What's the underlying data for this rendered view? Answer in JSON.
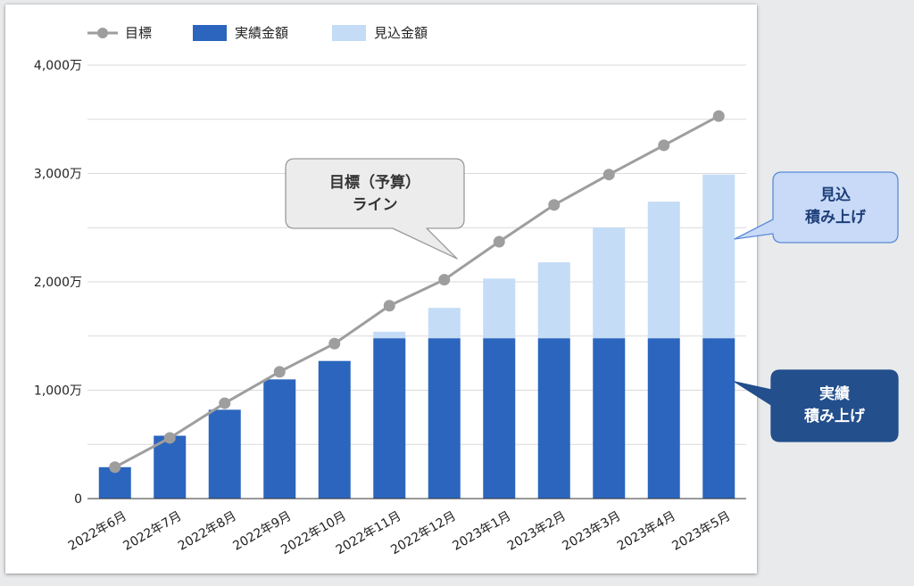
{
  "chart_data": {
    "type": "bar",
    "categories": [
      "2022年6月",
      "2022年7月",
      "2022年8月",
      "2022年9月",
      "2022年10月",
      "2022年11月",
      "2022年12月",
      "2023年1月",
      "2023年2月",
      "2023年3月",
      "2023年4月",
      "2023年5月"
    ],
    "series": [
      {
        "name": "目標",
        "type": "line",
        "values": [
          290,
          560,
          880,
          1170,
          1430,
          1780,
          2020,
          2370,
          2710,
          2990,
          3260,
          3530
        ]
      },
      {
        "name": "実績金額",
        "type": "bar",
        "stack": "total",
        "values": [
          290,
          580,
          820,
          1100,
          1270,
          1480,
          1480,
          1480,
          1480,
          1480,
          1480,
          1480
        ]
      },
      {
        "name": "見込金額",
        "type": "bar",
        "stack": "total",
        "values": [
          0,
          0,
          0,
          0,
          0,
          60,
          280,
          550,
          700,
          1020,
          1260,
          1510
        ]
      }
    ],
    "ylim": [
      0,
      4000
    ],
    "yticks": [
      {
        "value": 0,
        "label": "0"
      },
      {
        "value": 1000,
        "label": "1,000万"
      },
      {
        "value": 2000,
        "label": "2,000万"
      },
      {
        "value": 3000,
        "label": "3,000万"
      },
      {
        "value": 4000,
        "label": "4,000万"
      }
    ],
    "grid": true,
    "legend_position": "top-left",
    "colors": {
      "target_line": "#9e9e9e",
      "actual": "#2b65bd",
      "forecast": "#c4dcf6",
      "gridline": "#dadada"
    },
    "annotations": [
      {
        "id": "target",
        "lines": [
          "目標（予算）",
          "ライン"
        ],
        "fill": "#ececec",
        "stroke": "#9a9a9a",
        "text_color": "#333333"
      },
      {
        "id": "forecast",
        "lines": [
          "見込",
          "積み上げ"
        ],
        "fill": "#c8daf7",
        "stroke": "#5b8bd8",
        "text_color": "#1e3f7a"
      },
      {
        "id": "actual",
        "lines": [
          "実績",
          "積み上げ"
        ],
        "fill": "#234f8c",
        "stroke": "#234f8c",
        "text_color": "#ffffff"
      }
    ]
  }
}
